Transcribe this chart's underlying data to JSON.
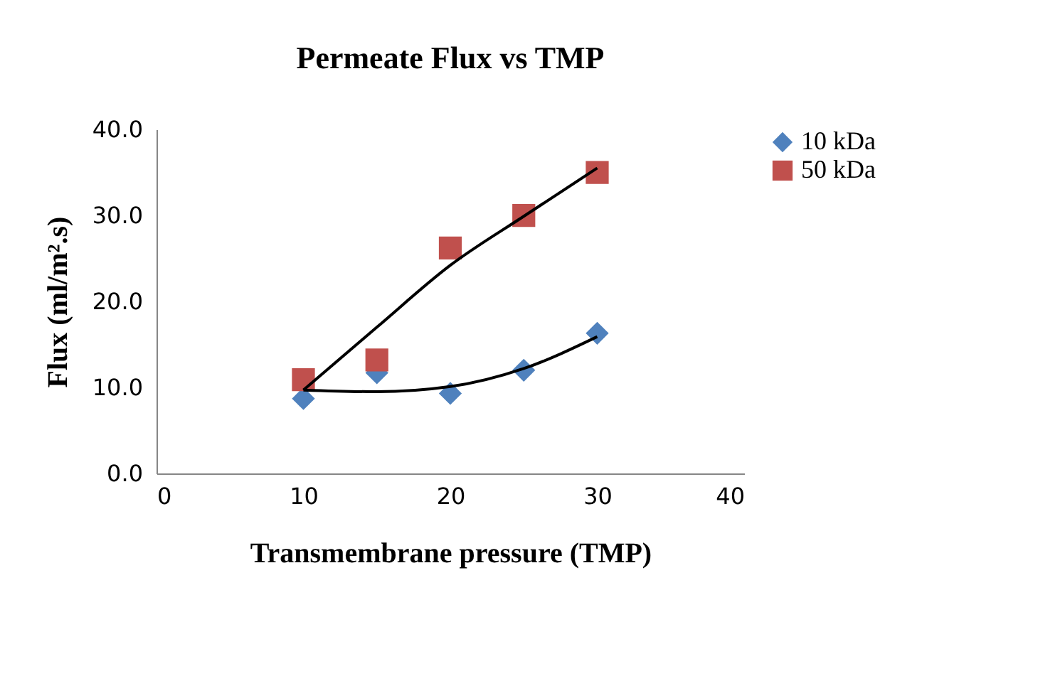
{
  "chart_data": {
    "type": "scatter",
    "title": "Permeate Flux vs TMP",
    "xlabel": "Transmembrane pressure (TMP)",
    "ylabel": "Flux (ml/m².s)",
    "x": [
      10,
      15,
      20,
      25,
      30
    ],
    "series": [
      {
        "name": "10 kDa",
        "color": "#4f81bd",
        "marker": "diamond",
        "values": [
          8.7,
          11.7,
          9.3,
          12.0,
          16.3
        ]
      },
      {
        "name": "50 kDa",
        "color": "#c0504d",
        "marker": "square",
        "values": [
          10.9,
          13.2,
          26.2,
          30.0,
          35.0
        ]
      },
      {
        "type": "line",
        "color": "#000000",
        "marker": "none",
        "x": [
          10,
          15,
          20,
          25,
          30
        ],
        "values": [
          9.7,
          9.5,
          10.1,
          12.2,
          15.9
        ]
      },
      {
        "type": "line",
        "color": "#000000",
        "marker": "none",
        "x": [
          10,
          15,
          20,
          25,
          30
        ],
        "values": [
          9.7,
          17.0,
          24.2,
          29.9,
          35.5
        ]
      }
    ],
    "xlim": [
      0,
      40
    ],
    "xticks": [
      0,
      10,
      20,
      30,
      40
    ],
    "ylim": [
      0,
      40
    ],
    "yticks": [
      {
        "value": 0,
        "label": "0.0"
      },
      {
        "value": 10,
        "label": "10.0"
      },
      {
        "value": 20,
        "label": "20.0"
      },
      {
        "value": 30,
        "label": "30.0"
      },
      {
        "value": 40,
        "label": "40.0"
      }
    ],
    "grid": false,
    "legend": "right"
  }
}
